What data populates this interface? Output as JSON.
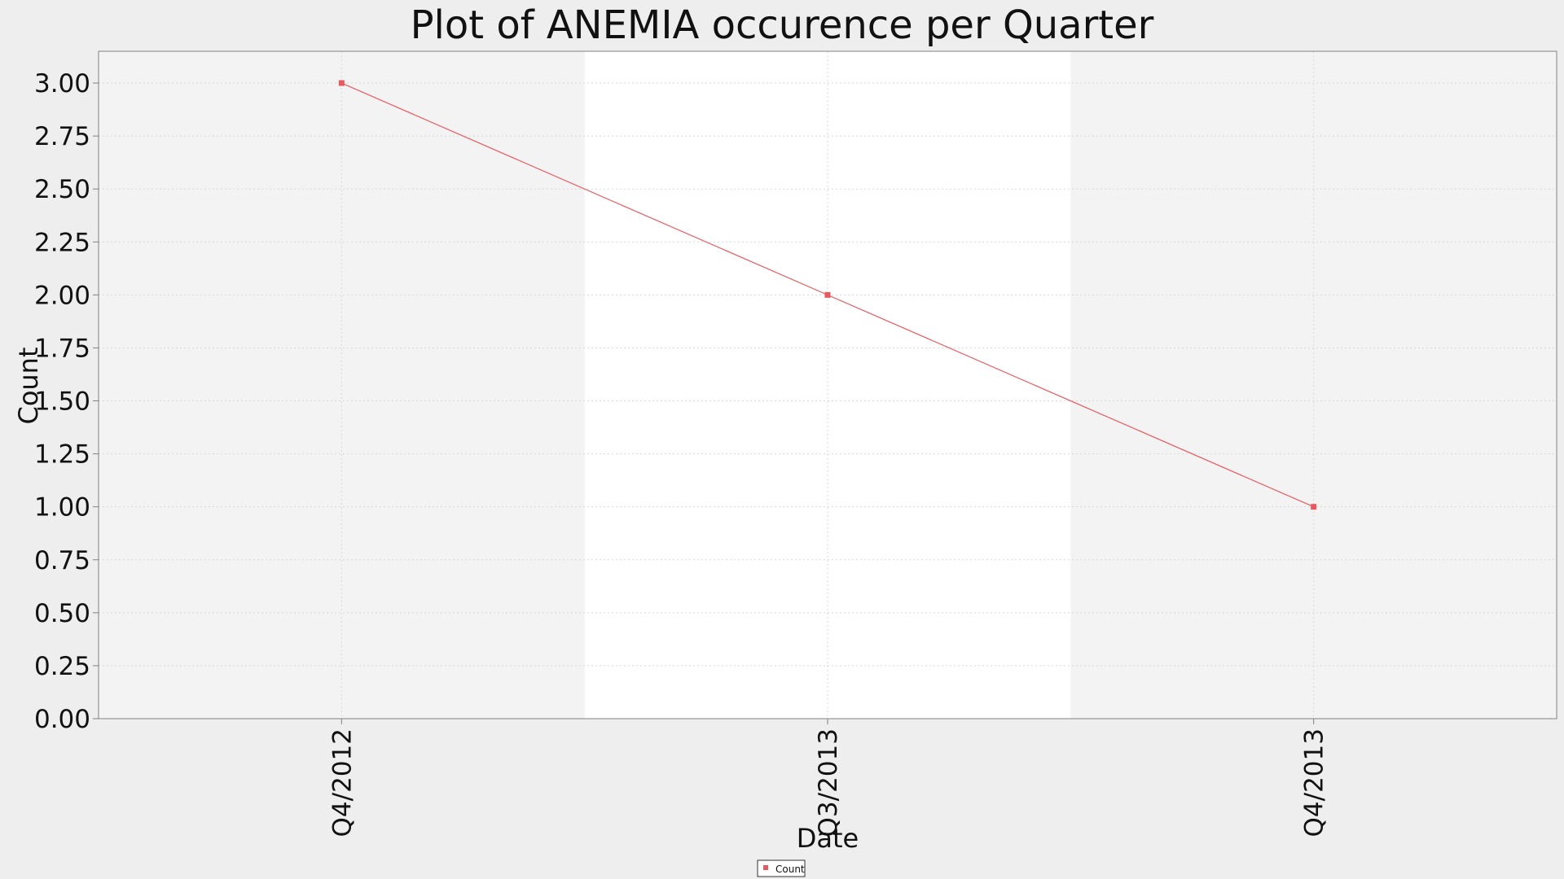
{
  "chart_data": {
    "type": "line",
    "title": "Plot of ANEMIA occurence per Quarter",
    "xlabel": "Date",
    "ylabel": "Count",
    "categories": [
      "Q4/2012",
      "Q3/2013",
      "Q4/2013"
    ],
    "series": [
      {
        "name": "Count",
        "values": [
          3,
          2,
          1
        ],
        "color": "#e8595f"
      }
    ],
    "ylim": [
      0,
      3.15
    ],
    "yticks": [
      0,
      0.25,
      0.5,
      0.75,
      1.0,
      1.25,
      1.5,
      1.75,
      2.0,
      2.25,
      2.5,
      2.75,
      3.0
    ],
    "ytick_labels": [
      "0.00",
      "0.25",
      "0.50",
      "0.75",
      "1.00",
      "1.25",
      "1.50",
      "1.75",
      "2.00",
      "2.25",
      "2.50",
      "2.75",
      "3.00"
    ],
    "grid": true,
    "legend_position": "bottom-center",
    "colors": {
      "page_background": "#eeeeee",
      "band_shaded": "#f3f3f3",
      "band_white": "#ffffff",
      "grid": "#d7d7d7",
      "axis": "#808080",
      "text": "#111111"
    }
  }
}
